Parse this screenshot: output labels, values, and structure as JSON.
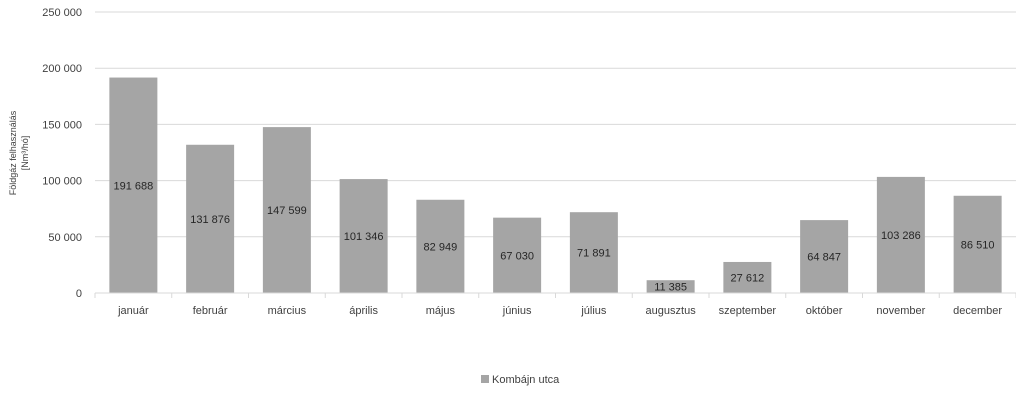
{
  "chart_data": {
    "type": "bar",
    "categories": [
      "január",
      "február",
      "március",
      "április",
      "május",
      "június",
      "július",
      "augusztus",
      "szeptember",
      "október",
      "november",
      "december"
    ],
    "series": [
      {
        "name": "Kombájn utca",
        "values": [
          191688,
          131876,
          147599,
          101346,
          82949,
          67030,
          71891,
          11385,
          27612,
          64847,
          103286,
          86510
        ],
        "labels": [
          "191 688",
          "131 876",
          "147 599",
          "101 346",
          "82 949",
          "67 030",
          "71 891",
          "11 385",
          "27 612",
          "64 847",
          "103 286",
          "86 510"
        ],
        "color": "#a5a5a5"
      }
    ],
    "ylabel_line1": "Földgáz felhasználás",
    "ylabel_line2": "[Nm³/hó]",
    "ylim": [
      0,
      250000
    ],
    "yticks": [
      0,
      50000,
      100000,
      150000,
      200000,
      250000
    ],
    "ytick_labels": [
      "0",
      "50 000",
      "100 000",
      "150 000",
      "200 000",
      "250 000"
    ],
    "grid": true,
    "legend_position": "bottom-center",
    "gridline_color": "#d9d9d9"
  }
}
